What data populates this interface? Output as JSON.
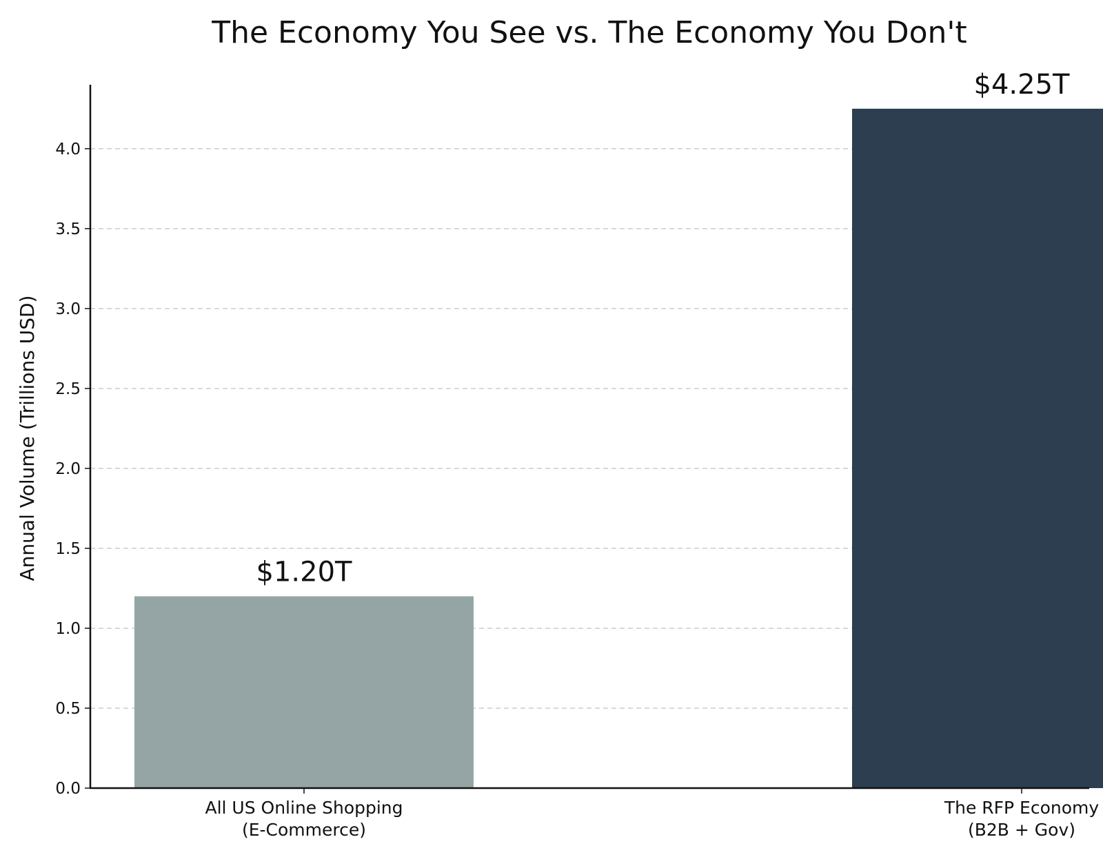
{
  "chart_data": {
    "type": "bar",
    "title": "The Economy You See vs. The Economy You Don't",
    "xlabel": "",
    "ylabel": "Annual Volume (Trillions USD)",
    "ylim": [
      0,
      4.4
    ],
    "yticks": [
      "0.0",
      "0.5",
      "1.0",
      "1.5",
      "2.0",
      "2.5",
      "3.0",
      "3.5",
      "4.0"
    ],
    "grid": "horizontal-dashed",
    "categories": [
      [
        "All US Online Shopping",
        "(E-Commerce)"
      ],
      [
        "The RFP Economy",
        "(B2B + Gov)"
      ]
    ],
    "values": [
      1.2,
      4.25
    ],
    "data_labels": [
      "$1.20T",
      "$4.25T"
    ],
    "colors": [
      "#95a5a6",
      "#2c3e50"
    ]
  }
}
